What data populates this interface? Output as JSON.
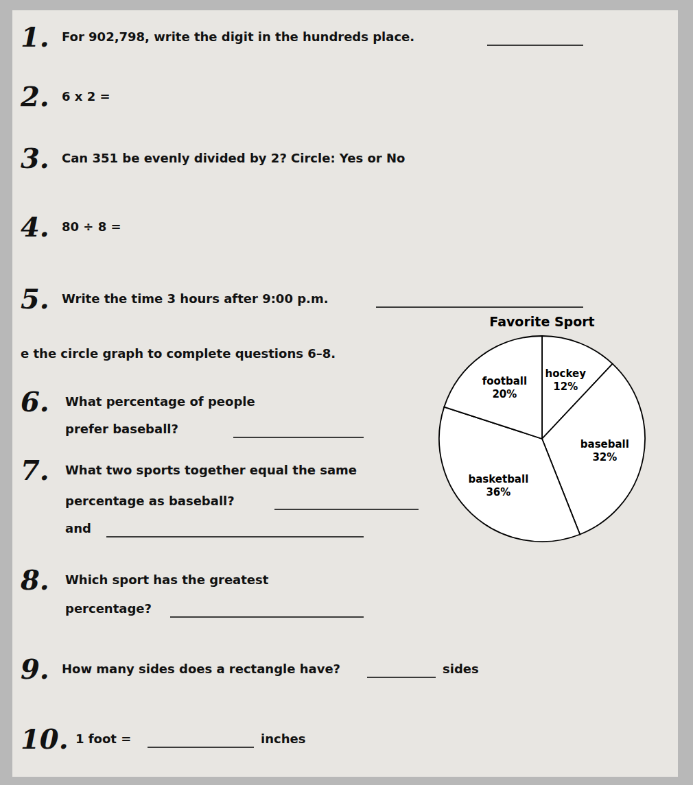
{
  "chart_data": {
    "type": "pie",
    "title": "Favorite Sport",
    "categories": [
      "hockey",
      "baseball",
      "basketball",
      "football"
    ],
    "values": [
      12,
      32,
      36,
      20
    ],
    "value_labels": [
      "12%",
      "32%",
      "36%",
      "20%"
    ],
    "data_labels": true,
    "colors": [
      "#ffffff",
      "#ffffff",
      "#ffffff",
      "#ffffff"
    ],
    "annotations": [
      "1.",
      "For 902,798, write the digit in the hundreds place.",
      "2.",
      "6 x 2 =",
      "3.",
      "Can 351 be evenly divided by 2?    Circle:  Yes    or    No",
      "4.",
      "80 ÷ 8 =",
      "5.",
      "Write the time 3 hours after 9:00 p.m.",
      "e the circle graph to complete questions 6–8.",
      "6.",
      "What percentage of people",
      "prefer baseball?",
      "7.",
      "What two sports together equal the same",
      "percentage as baseball?",
      "and",
      "8.",
      "Which sport has the greatest",
      "percentage?",
      "9.",
      "How many sides does a rectangle have?",
      "sides",
      "10.",
      "1 foot =",
      "inches"
    ]
  }
}
